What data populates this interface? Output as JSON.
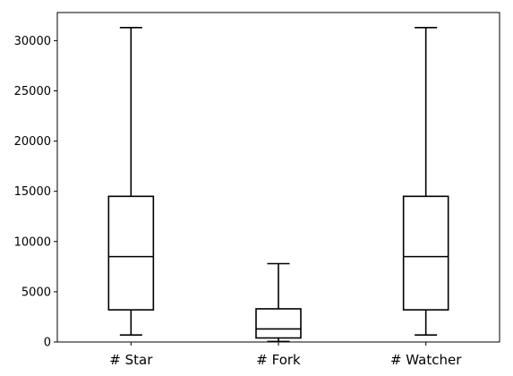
{
  "chart_data": {
    "type": "box",
    "categories": [
      "# Star",
      "# Fork",
      "# Watcher"
    ],
    "boxes": [
      {
        "whisker_low": 700,
        "q1": 3200,
        "median": 8500,
        "q3": 14500,
        "whisker_high": 31300
      },
      {
        "whisker_low": 50,
        "q1": 400,
        "median": 1300,
        "q3": 3300,
        "whisker_high": 7800
      },
      {
        "whisker_low": 700,
        "q1": 3200,
        "median": 8500,
        "q3": 14500,
        "whisker_high": 31300
      }
    ],
    "yticks": [
      0,
      5000,
      10000,
      15000,
      20000,
      25000,
      30000
    ],
    "ytick_labels": [
      "0",
      "5000",
      "10000",
      "15000",
      "20000",
      "25000",
      "30000"
    ],
    "ylim": [
      0,
      32800
    ],
    "title": "",
    "xlabel": "",
    "ylabel": "",
    "grid": false,
    "line_color": "#000000"
  }
}
